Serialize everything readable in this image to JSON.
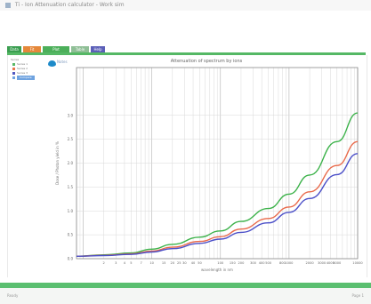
{
  "window": {
    "title": "Ti - Ion Attenuation calculator - Work sim"
  },
  "tabs": [
    {
      "label": "Data",
      "color": "#3a9e50"
    },
    {
      "label": "Fit",
      "color": "#e5883a"
    },
    {
      "label": "Plot",
      "color": "#4caf5a"
    },
    {
      "label": "Table",
      "color": "#8fbf96"
    },
    {
      "label": "Help",
      "color": "#5b5fb8"
    }
  ],
  "sidebar": {
    "header": "Series",
    "items": [
      {
        "label": "Series 1",
        "color": "#58b866"
      },
      {
        "label": "Series 2",
        "color": "#e9774e"
      },
      {
        "label": "Series 3",
        "color": "#5158c2"
      },
      {
        "label": "Compare",
        "color": "#6fa3e0"
      }
    ]
  },
  "info": {
    "icon": "info-icon",
    "label": "Notes"
  },
  "chart_data": {
    "type": "line",
    "title": "Attenuation of spectrum by ions",
    "xlabel": "wavelength in nm",
    "ylabel": "Dose / Photon yield in %",
    "xscale": "log",
    "xlim": [
      0.8,
      10000
    ],
    "ylim": [
      0,
      4
    ],
    "grid": true,
    "x_tick_labels": [
      "2",
      "3",
      "4",
      "5",
      "7",
      "10",
      "15",
      "20",
      "25",
      "30",
      "40",
      "50",
      "100",
      "150",
      "200",
      "300",
      "400",
      "500",
      "800",
      "1000",
      "2000",
      "3000",
      "4000",
      "5000",
      "10000"
    ],
    "y_tick_labels": [
      "0.0",
      "0.5",
      "1.0",
      "1.5",
      "2.0",
      "2.5",
      "3.0"
    ],
    "x": [
      0.8,
      2,
      5,
      10,
      20,
      50,
      100,
      200,
      500,
      1000,
      2000,
      5000,
      10000
    ],
    "series": [
      {
        "color": "#3cb24a",
        "values": [
          0.05,
          0.08,
          0.12,
          0.2,
          0.3,
          0.45,
          0.58,
          0.78,
          1.05,
          1.35,
          1.75,
          2.45,
          3.05
        ]
      },
      {
        "color": "#e9694a",
        "values": [
          0.05,
          0.07,
          0.1,
          0.16,
          0.24,
          0.36,
          0.46,
          0.62,
          0.84,
          1.08,
          1.4,
          1.95,
          2.45
        ]
      },
      {
        "color": "#4b4fc8",
        "values": [
          0.05,
          0.065,
          0.09,
          0.14,
          0.21,
          0.32,
          0.41,
          0.55,
          0.75,
          0.97,
          1.26,
          1.76,
          2.2
        ]
      }
    ]
  },
  "statusbar": {
    "left": "Ready",
    "right": "Page 1"
  },
  "colors": {
    "accent": "#55b865",
    "grid": "#d9d9d9"
  }
}
